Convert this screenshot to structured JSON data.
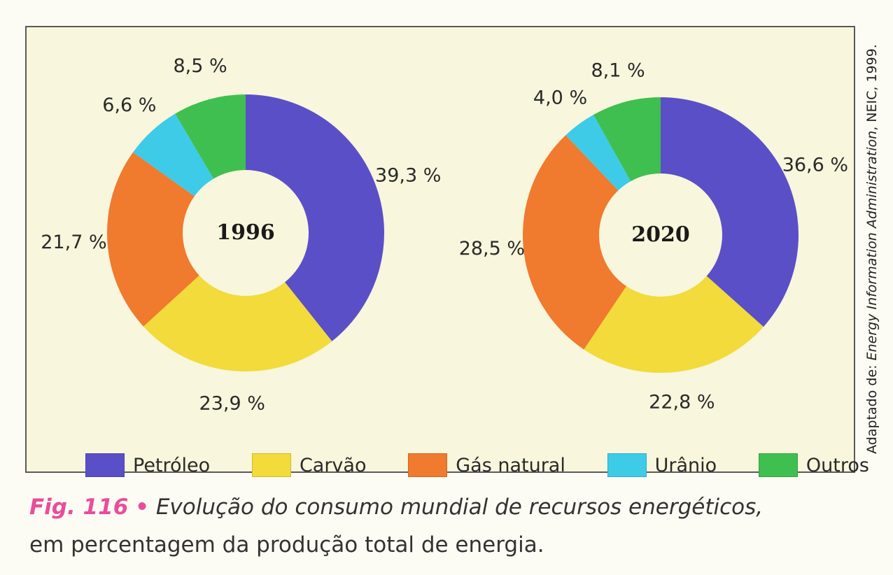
{
  "chart_data": [
    {
      "type": "pie",
      "donut": true,
      "center_label": "1996",
      "categories": [
        "Petróleo",
        "Carvão",
        "Gás natural",
        "Urânio",
        "Outros"
      ],
      "values": [
        39.3,
        23.9,
        21.7,
        6.6,
        8.5
      ],
      "value_labels": [
        "39,3 %",
        "23,9 %",
        "21,7 %",
        "6,6 %",
        "8,5 %"
      ],
      "start": "top",
      "direction": "clockwise"
    },
    {
      "type": "pie",
      "donut": true,
      "center_label": "2020",
      "categories": [
        "Petróleo",
        "Carvão",
        "Gás natural",
        "Urânio",
        "Outros"
      ],
      "values": [
        36.6,
        22.8,
        28.5,
        4.0,
        8.1
      ],
      "value_labels": [
        "36,6 %",
        "22,8 %",
        "28,5 %",
        "4,0 %",
        "8,1 %"
      ],
      "start": "top",
      "direction": "clockwise"
    }
  ],
  "legend": {
    "placement": "bottom",
    "items": [
      {
        "label": "Petróleo",
        "color": "#5b4fc7"
      },
      {
        "label": "Carvão",
        "color": "#f2db3a"
      },
      {
        "label": "Gás natural",
        "color": "#f07a2e"
      },
      {
        "label": "Urânio",
        "color": "#3dcbe8"
      },
      {
        "label": "Outros",
        "color": "#3fbf4f"
      }
    ]
  },
  "source": {
    "prefix": "Adaptado de: ",
    "name": "Energy Information Administration",
    "suffix": ", NEIC, 1999."
  },
  "caption": {
    "label": "Fig. 116",
    "bullet": "•",
    "line1": "Evolução do consumo mundial de recursos energéticos,",
    "line2": "em percentagem da produção total de energia."
  }
}
